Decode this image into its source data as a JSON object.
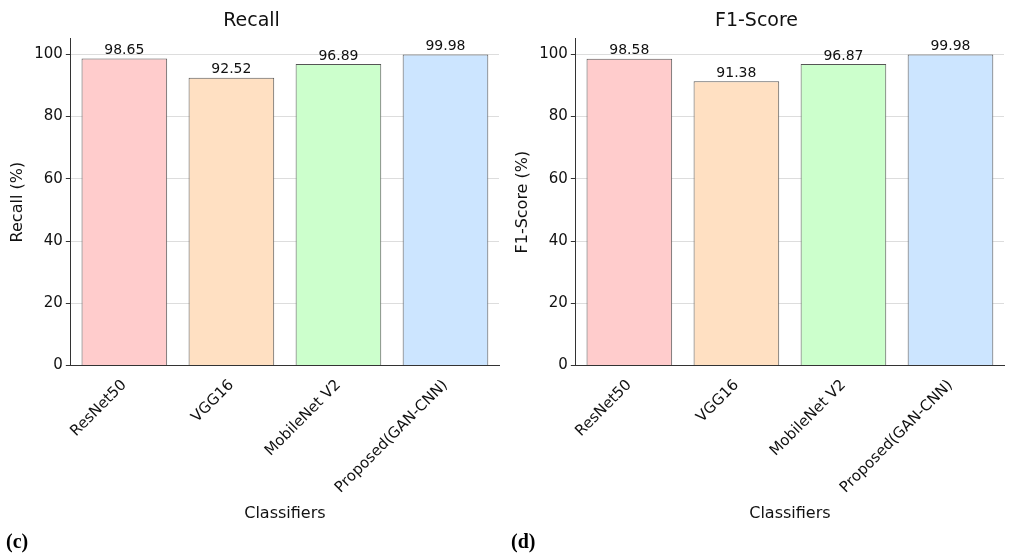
{
  "chart_data": [
    {
      "type": "bar",
      "title": "Recall",
      "xlabel": "Classifiers",
      "ylabel": "Recall (%)",
      "categories": [
        "ResNet50",
        "VGG16",
        "MobileNet V2",
        "Proposed(GAN-CNN)"
      ],
      "values": [
        98.65,
        92.52,
        96.89,
        99.98
      ],
      "colors": [
        "#ffcccc",
        "#ffe0c2",
        "#ccffcc",
        "#cce5ff"
      ],
      "ylim": [
        0,
        105
      ],
      "yticks": [
        0,
        20,
        40,
        60,
        80,
        100
      ],
      "grid": "y",
      "data_labels": true,
      "annotations": [
        "(c)"
      ]
    },
    {
      "type": "bar",
      "title": "F1-Score",
      "xlabel": "Classifiers",
      "ylabel": "F1-Score (%)",
      "categories": [
        "ResNet50",
        "VGG16",
        "MobileNet V2",
        "Proposed(GAN-CNN)"
      ],
      "values": [
        98.58,
        91.38,
        96.87,
        99.98
      ],
      "colors": [
        "#ffcccc",
        "#ffe0c2",
        "#ccffcc",
        "#cce5ff"
      ],
      "ylim": [
        0,
        105
      ],
      "yticks": [
        0,
        20,
        40,
        60,
        80,
        100
      ],
      "grid": "y",
      "data_labels": true,
      "annotations": [
        "(d)"
      ]
    }
  ]
}
